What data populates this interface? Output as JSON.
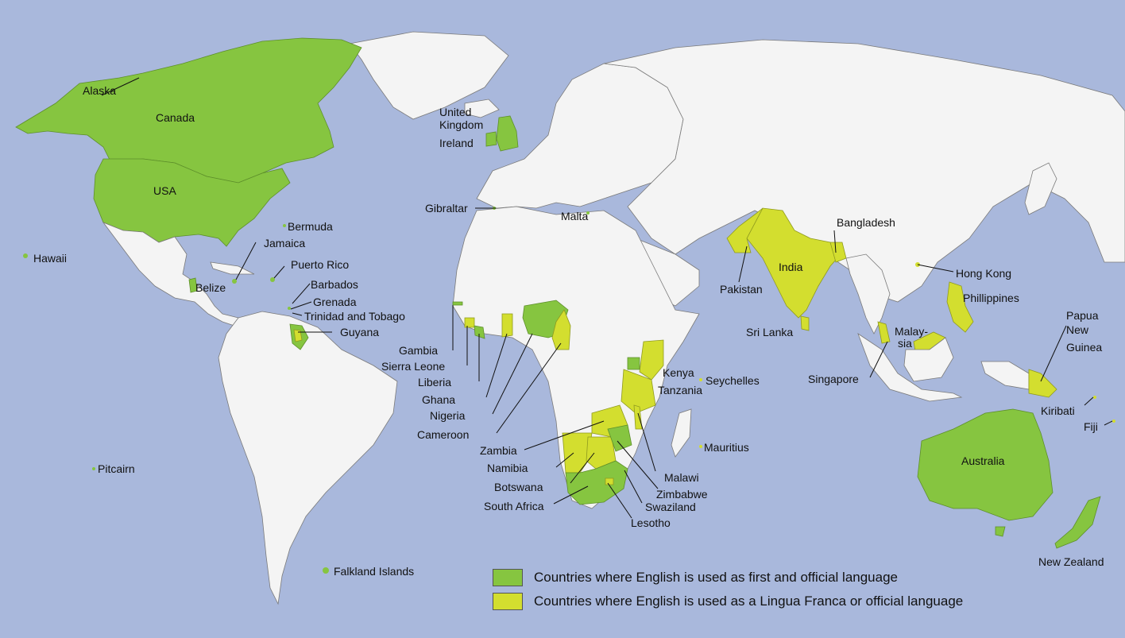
{
  "colors": {
    "ocean": "#a9b8dc",
    "land": "#f4f4f4",
    "first_official": "#86c540",
    "lingua_franca": "#d3de2f"
  },
  "legend": {
    "first_official": "Countries where English is used as first and official language",
    "lingua_franca": "Countries where English is used as a Lingua Franca or official language"
  },
  "labels": {
    "alaska": "Alaska",
    "canada": "Canada",
    "usa": "USA",
    "hawaii": "Hawaii",
    "bermuda": "Bermuda",
    "jamaica": "Jamaica",
    "puerto_rico": "Puerto Rico",
    "belize": "Belize",
    "barbados": "Barbados",
    "grenada": "Grenada",
    "trinidad": "Trinidad and Tobago",
    "guyana": "Guyana",
    "pitcairn": "Pitcairn",
    "falkland": "Falkland Islands",
    "uk_1": "United",
    "uk_2": "Kingdom",
    "ireland": "Ireland",
    "gibraltar": "Gibraltar",
    "malta": "Malta",
    "gambia": "Gambia",
    "sierra_leone": "Sierra Leone",
    "liberia": "Liberia",
    "ghana": "Ghana",
    "nigeria": "Nigeria",
    "cameroon": "Cameroon",
    "kenya": "Kenya",
    "tanzania": "Tanzania",
    "seychelles": "Seychelles",
    "zambia": "Zambia",
    "namibia": "Namibia",
    "botswana": "Botswana",
    "south_africa": "South Africa",
    "malawi": "Malawi",
    "zimbabwe": "Zimbabwe",
    "swaziland": "Swaziland",
    "lesotho": "Lesotho",
    "mauritius": "Mauritius",
    "pakistan": "Pakistan",
    "india": "India",
    "bangladesh": "Bangladesh",
    "sri_lanka": "Sri Lanka",
    "hong_kong": "Hong Kong",
    "phillippines": "Phillippines",
    "malaysia_1": "Malay-",
    "malaysia_2": "sia",
    "singapore": "Singapore",
    "png_1": "Papua",
    "png_2": "New",
    "png_3": "Guinea",
    "kiribati": "Kiribati",
    "fiji": "Fiji",
    "australia": "Australia",
    "new_zealand": "New Zealand"
  }
}
